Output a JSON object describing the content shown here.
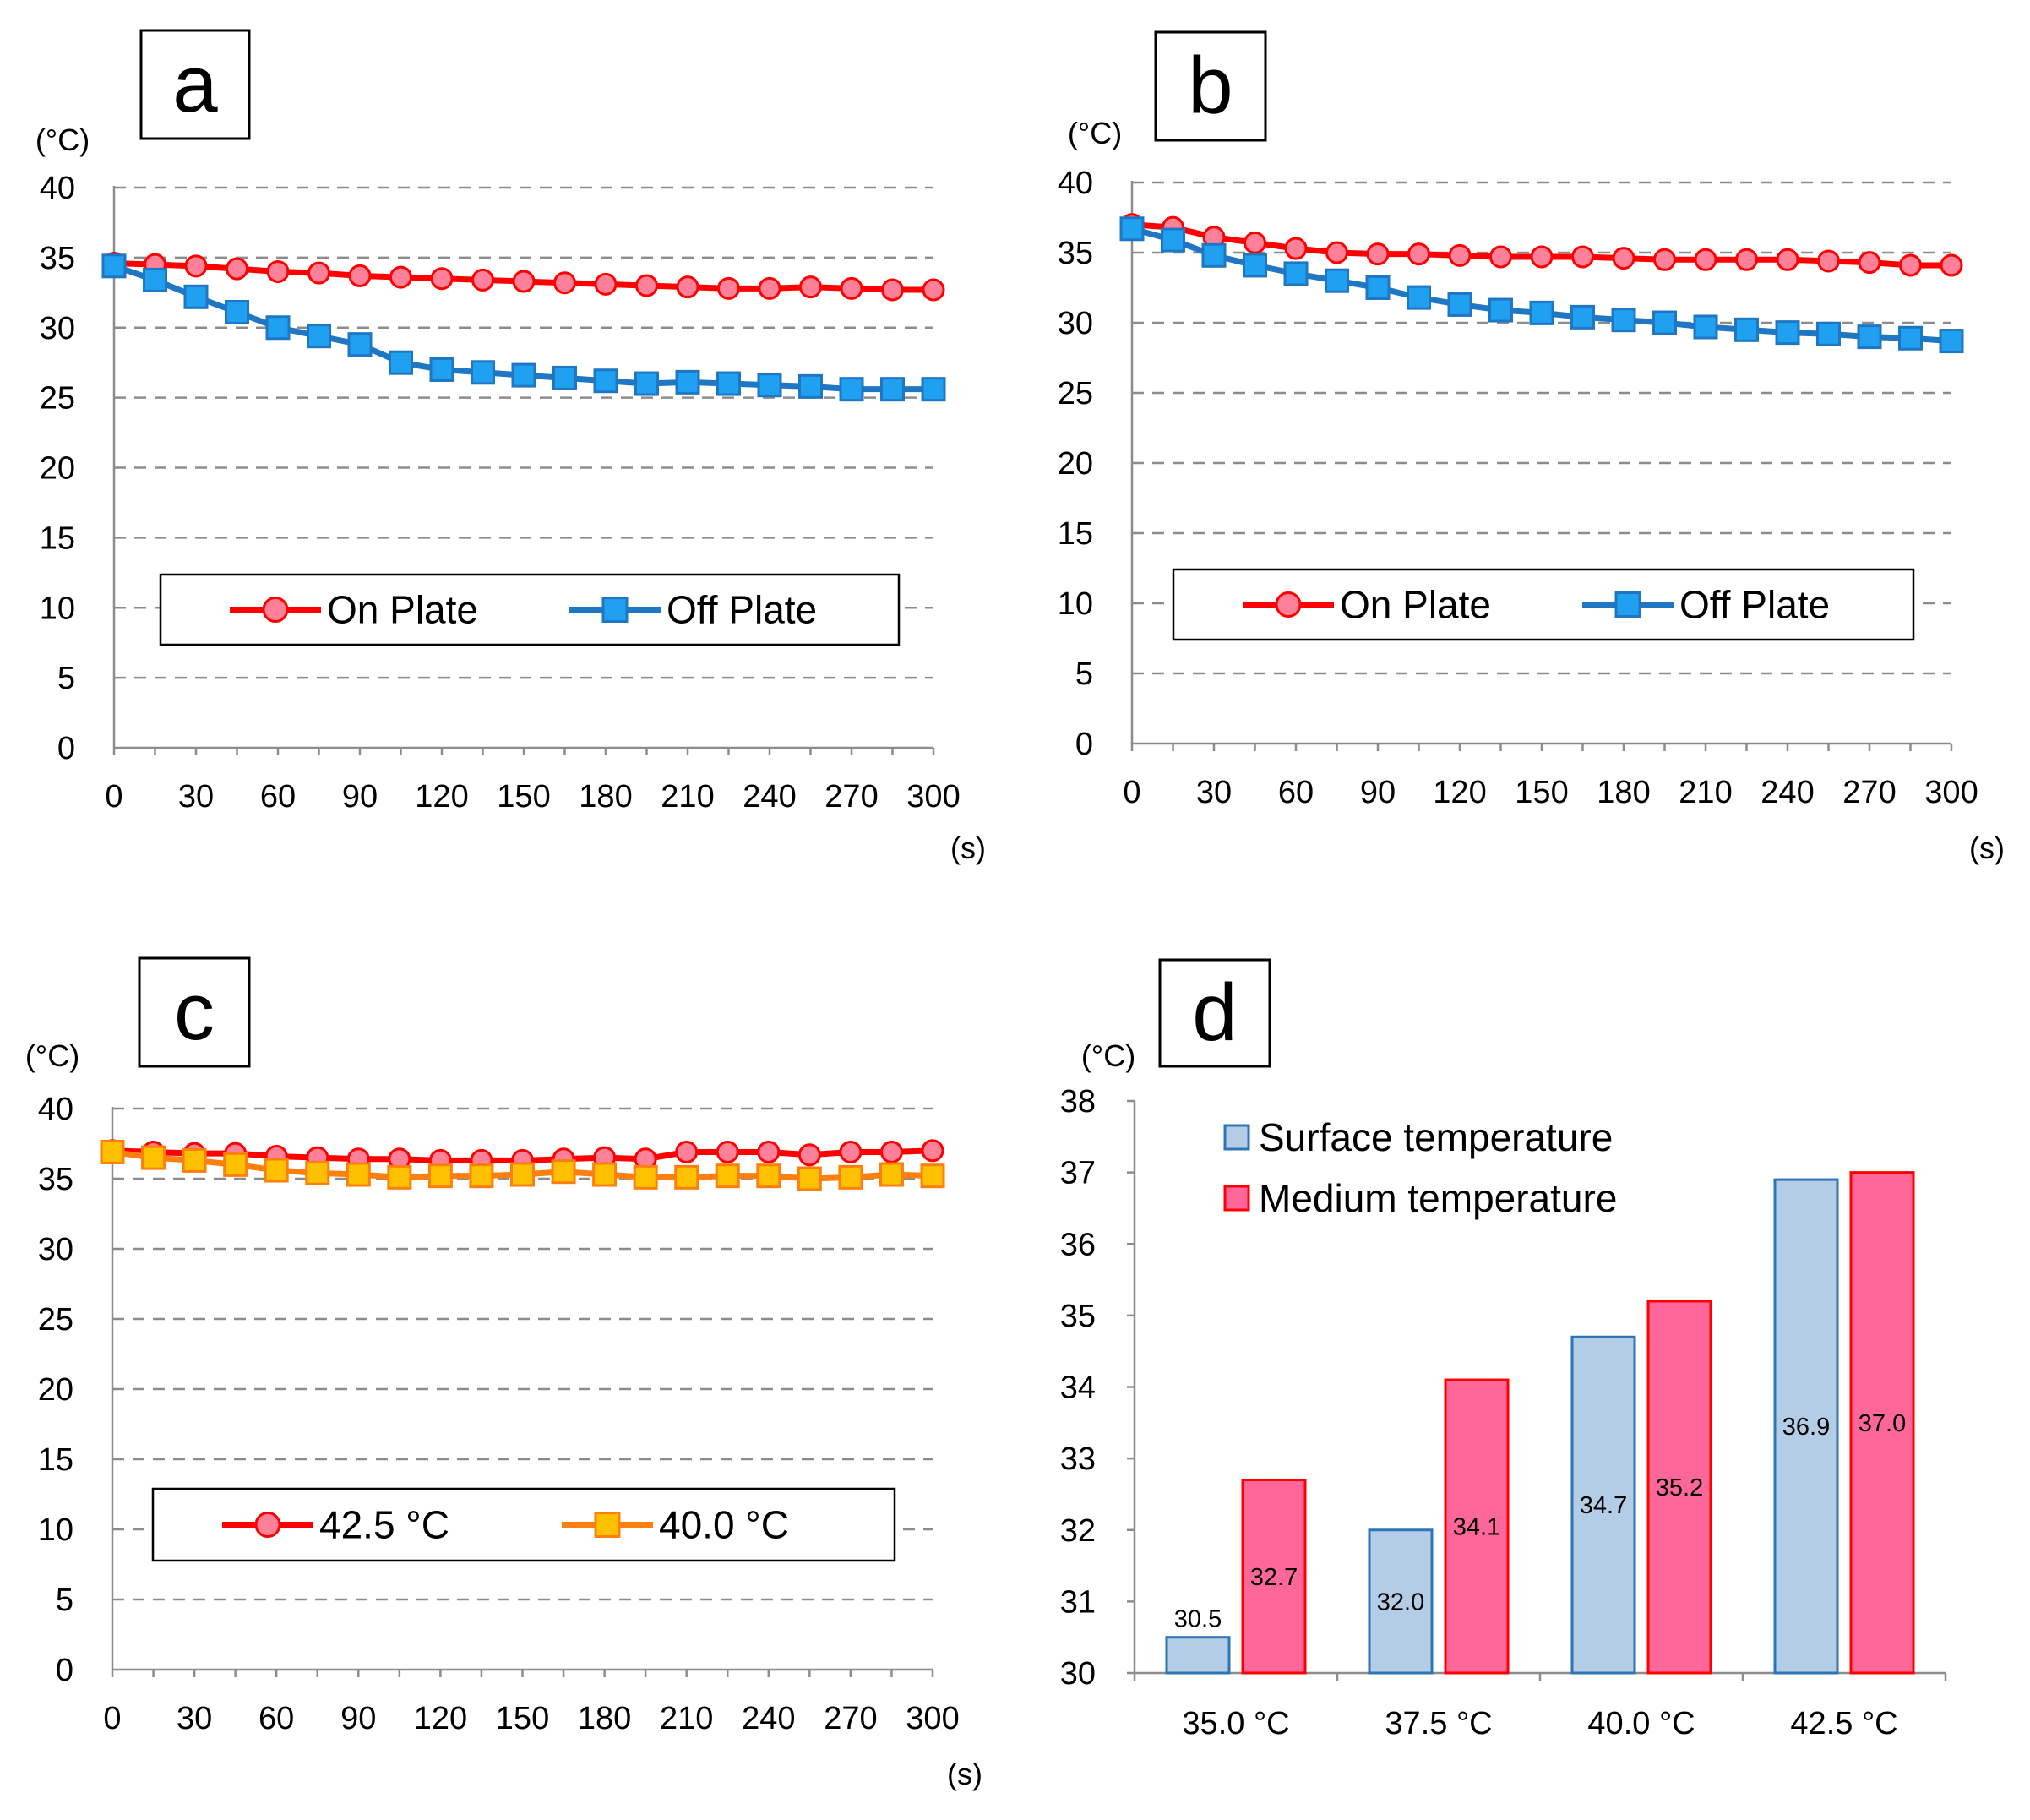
{
  "chart_data": [
    {
      "panel": "a",
      "type": "line",
      "unit_y": "(°C)",
      "unit_x": "(s)",
      "x": [
        0,
        15,
        30,
        45,
        60,
        75,
        90,
        105,
        120,
        135,
        150,
        165,
        180,
        195,
        210,
        225,
        240,
        255,
        270,
        285,
        300
      ],
      "x_ticks": [
        "0",
        "30",
        "60",
        "90",
        "120",
        "150",
        "180",
        "210",
        "240",
        "270",
        "300"
      ],
      "y_ticks": [
        "0",
        "5",
        "10",
        "15",
        "20",
        "25",
        "30",
        "35",
        "40"
      ],
      "ylim": [
        0,
        40
      ],
      "grid": true,
      "series": [
        {
          "name": "On Plate",
          "color": "#ff0000",
          "fill": "#ff8099",
          "marker": "circle",
          "values": [
            34.6,
            34.5,
            34.4,
            34.2,
            34.0,
            33.9,
            33.7,
            33.6,
            33.5,
            33.4,
            33.3,
            33.2,
            33.1,
            33.0,
            32.9,
            32.8,
            32.8,
            32.9,
            32.8,
            32.7,
            32.7
          ]
        },
        {
          "name": "Off Plate",
          "color": "#1f77c4",
          "fill": "#1fa0f0",
          "marker": "square",
          "values": [
            34.4,
            33.4,
            32.2,
            31.1,
            30.0,
            29.4,
            28.8,
            27.5,
            27.0,
            26.8,
            26.6,
            26.4,
            26.2,
            26.0,
            26.1,
            26.0,
            25.9,
            25.8,
            25.6,
            25.6,
            25.6
          ]
        }
      ]
    },
    {
      "panel": "b",
      "type": "line",
      "unit_y": "(°C)",
      "unit_x": "(s)",
      "x": [
        0,
        15,
        30,
        45,
        60,
        75,
        90,
        105,
        120,
        135,
        150,
        165,
        180,
        195,
        210,
        225,
        240,
        255,
        270,
        285,
        300
      ],
      "x_ticks": [
        "0",
        "30",
        "60",
        "90",
        "120",
        "150",
        "180",
        "210",
        "240",
        "270",
        "300"
      ],
      "y_ticks": [
        "0",
        "5",
        "10",
        "15",
        "20",
        "25",
        "30",
        "35",
        "40"
      ],
      "ylim": [
        0,
        40
      ],
      "grid": true,
      "series": [
        {
          "name": "On Plate",
          "color": "#ff0000",
          "fill": "#ff8099",
          "marker": "circle",
          "values": [
            37.0,
            36.8,
            36.1,
            35.7,
            35.3,
            35.0,
            34.9,
            34.9,
            34.8,
            34.7,
            34.7,
            34.7,
            34.6,
            34.5,
            34.5,
            34.5,
            34.5,
            34.4,
            34.3,
            34.1,
            34.1
          ]
        },
        {
          "name": "Off Plate",
          "color": "#1f77c4",
          "fill": "#1fa0f0",
          "marker": "square",
          "values": [
            36.7,
            35.9,
            34.8,
            34.1,
            33.5,
            33.0,
            32.5,
            31.8,
            31.3,
            30.9,
            30.7,
            30.4,
            30.2,
            30.0,
            29.7,
            29.5,
            29.3,
            29.2,
            29.0,
            28.9,
            28.7
          ]
        }
      ]
    },
    {
      "panel": "c",
      "type": "line",
      "unit_y": "(°C)",
      "unit_x": "(s)",
      "x": [
        0,
        15,
        30,
        45,
        60,
        75,
        90,
        105,
        120,
        135,
        150,
        165,
        180,
        195,
        210,
        225,
        240,
        255,
        270,
        285,
        300
      ],
      "x_ticks": [
        "0",
        "30",
        "60",
        "90",
        "120",
        "150",
        "180",
        "210",
        "240",
        "270",
        "300"
      ],
      "y_ticks": [
        "0",
        "5",
        "10",
        "15",
        "20",
        "25",
        "30",
        "35",
        "40"
      ],
      "ylim": [
        0,
        40
      ],
      "grid": true,
      "series": [
        {
          "name": "42.5 °C",
          "color": "#ff0000",
          "fill": "#ff8099",
          "marker": "circle",
          "values": [
            37.0,
            36.9,
            36.8,
            36.8,
            36.6,
            36.5,
            36.4,
            36.4,
            36.3,
            36.3,
            36.3,
            36.4,
            36.5,
            36.4,
            36.9,
            36.9,
            36.9,
            36.7,
            36.9,
            36.9,
            37.0
          ]
        },
        {
          "name": "40.0 °C",
          "color": "#ff7f0e",
          "fill": "#ffc000",
          "marker": "square",
          "values": [
            36.9,
            36.5,
            36.3,
            36.0,
            35.6,
            35.4,
            35.3,
            35.1,
            35.2,
            35.2,
            35.3,
            35.5,
            35.3,
            35.1,
            35.1,
            35.2,
            35.2,
            35.0,
            35.1,
            35.3,
            35.2
          ]
        }
      ]
    },
    {
      "panel": "d",
      "type": "bar",
      "unit_y": "(°C)",
      "categories": [
        "35.0 °C",
        "37.5 °C",
        "40.0 °C",
        "42.5 °C"
      ],
      "y_ticks": [
        "30",
        "31",
        "32",
        "33",
        "34",
        "35",
        "36",
        "37",
        "38"
      ],
      "ylim": [
        30,
        38
      ],
      "grid": false,
      "series": [
        {
          "name": "Surface temperature",
          "color": "#2e75b6",
          "fill": "#b4cde6",
          "values": [
            30.5,
            32.0,
            34.7,
            36.9
          ],
          "labels": [
            "30.5",
            "32.0",
            "34.7",
            "36.9"
          ]
        },
        {
          "name": "Medium temperature",
          "color": "#ff0000",
          "fill": "#ff6699",
          "values": [
            32.7,
            34.1,
            35.2,
            37.0
          ],
          "labels": [
            "32.7",
            "34.1",
            "35.2",
            "37.0"
          ]
        }
      ]
    }
  ]
}
